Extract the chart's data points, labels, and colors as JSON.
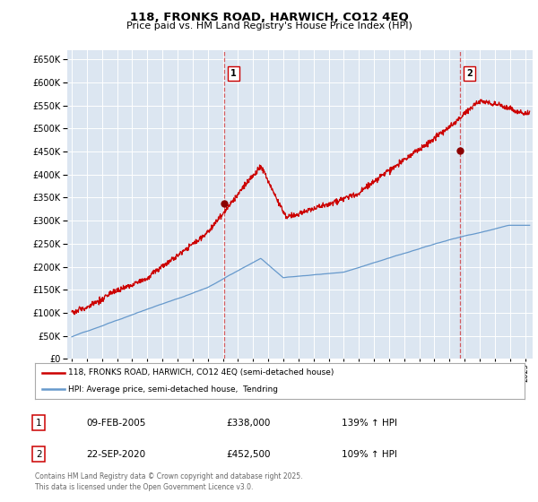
{
  "title": "118, FRONKS ROAD, HARWICH, CO12 4EQ",
  "subtitle": "Price paid vs. HM Land Registry's House Price Index (HPI)",
  "ylim": [
    0,
    670000
  ],
  "yticks": [
    0,
    50000,
    100000,
    150000,
    200000,
    250000,
    300000,
    350000,
    400000,
    450000,
    500000,
    550000,
    600000,
    650000
  ],
  "xlim_start": 1994.7,
  "xlim_end": 2025.5,
  "bg_color": "#dce6f1",
  "grid_color": "#ffffff",
  "red_color": "#cc0000",
  "blue_color": "#6699cc",
  "marker1_date": 2005.1,
  "marker1_value": 338000,
  "marker2_date": 2020.72,
  "marker2_value": 452500,
  "legend_line1": "118, FRONKS ROAD, HARWICH, CO12 4EQ (semi-detached house)",
  "legend_line2": "HPI: Average price, semi-detached house,  Tendring",
  "table_rows": [
    {
      "num": "1",
      "date": "09-FEB-2005",
      "price": "£338,000",
      "hpi": "139% ↑ HPI"
    },
    {
      "num": "2",
      "date": "22-SEP-2020",
      "price": "£452,500",
      "hpi": "109% ↑ HPI"
    }
  ],
  "footer": "Contains HM Land Registry data © Crown copyright and database right 2025.\nThis data is licensed under the Open Government Licence v3.0.",
  "vline_color": "#cc0000",
  "vline_alpha": 0.6
}
